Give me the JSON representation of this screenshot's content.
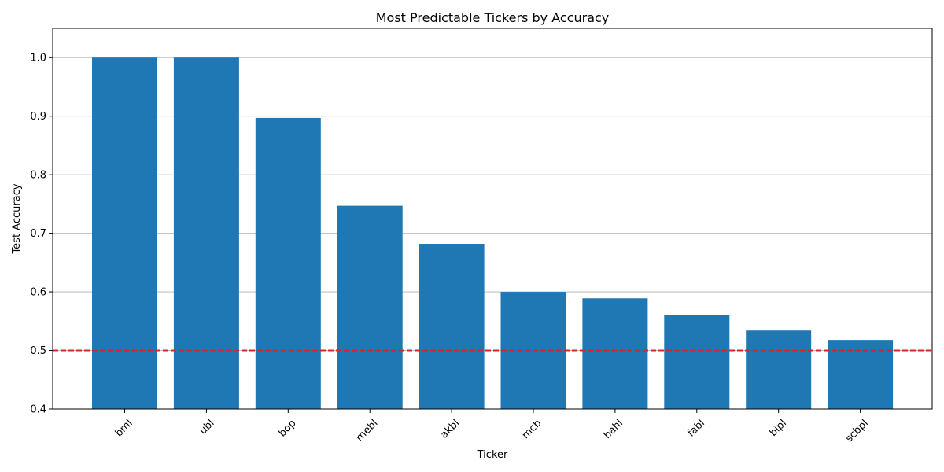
{
  "chart_data": {
    "type": "bar",
    "title": "Most Predictable Tickers by Accuracy",
    "xlabel": "Ticker",
    "ylabel": "Test Accuracy",
    "categories": [
      "bml",
      "ubl",
      "bop",
      "mebl",
      "akbl",
      "mcb",
      "bahl",
      "fabl",
      "bipl",
      "scbpl"
    ],
    "values": [
      1.0,
      1.0,
      0.897,
      0.747,
      0.682,
      0.6,
      0.589,
      0.561,
      0.534,
      0.518
    ],
    "ylim": [
      0.4,
      1.05
    ],
    "yticks": [
      "0.4",
      "0.5",
      "0.6",
      "0.7",
      "0.8",
      "0.9",
      "1.0"
    ],
    "grid": "y-major",
    "reference_line": {
      "value": 0.5,
      "style": "dashed",
      "color": "#d62728"
    },
    "bar_color": "#1f77b4",
    "tick_rotation_deg": 45
  }
}
